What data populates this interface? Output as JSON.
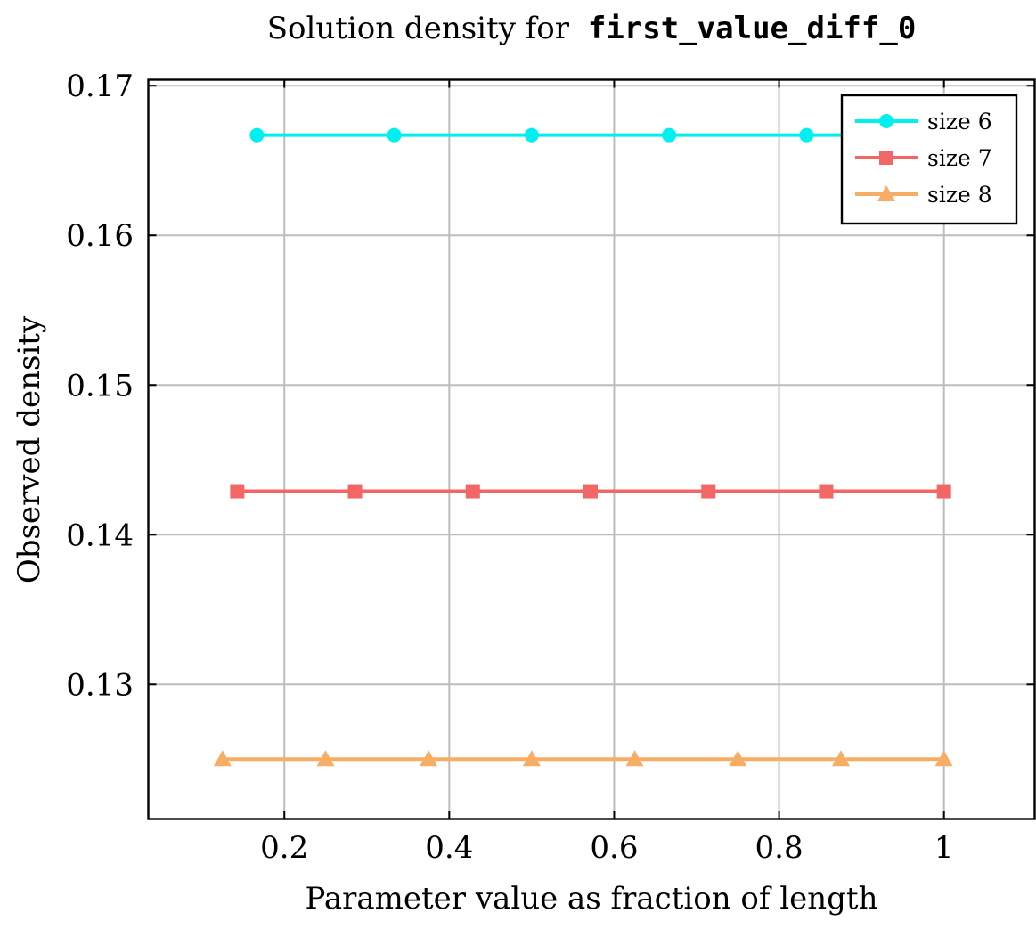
{
  "chart_data": {
    "type": "line",
    "title": "Solution density for",
    "title_code": "first_value_diff_0",
    "xlabel": "Parameter value as fraction of length",
    "ylabel": "Observed density",
    "xlim": [
      0.035,
      1.11
    ],
    "ylim": [
      0.121,
      0.1704
    ],
    "xticks": [
      0.2,
      0.4,
      0.6,
      0.8,
      1
    ],
    "xtick_labels": [
      "0.2",
      "0.4",
      "0.6",
      "0.8",
      "1"
    ],
    "yticks": [
      0.13,
      0.14,
      0.15,
      0.16,
      0.17
    ],
    "ytick_labels": [
      "0.13",
      "0.14",
      "0.15",
      "0.16",
      "0.17"
    ],
    "grid": true,
    "legend_position": "top-right",
    "series": [
      {
        "name": "size 6",
        "color": "#00f0f0",
        "marker": "circle",
        "x": [
          0.1667,
          0.3333,
          0.5,
          0.6667,
          0.8333,
          1.0
        ],
        "y": [
          0.1667,
          0.1667,
          0.1667,
          0.1667,
          0.1667,
          0.1667
        ]
      },
      {
        "name": "size 7",
        "color": "#f26666",
        "marker": "square",
        "x": [
          0.1429,
          0.2857,
          0.4286,
          0.5714,
          0.7143,
          0.8571,
          1.0
        ],
        "y": [
          0.1429,
          0.1429,
          0.1429,
          0.1429,
          0.1429,
          0.1429,
          0.1429
        ]
      },
      {
        "name": "size 8",
        "color": "#f7ad64",
        "marker": "triangle",
        "x": [
          0.125,
          0.25,
          0.375,
          0.5,
          0.625,
          0.75,
          0.875,
          1.0
        ],
        "y": [
          0.125,
          0.125,
          0.125,
          0.125,
          0.125,
          0.125,
          0.125,
          0.125
        ]
      }
    ]
  }
}
